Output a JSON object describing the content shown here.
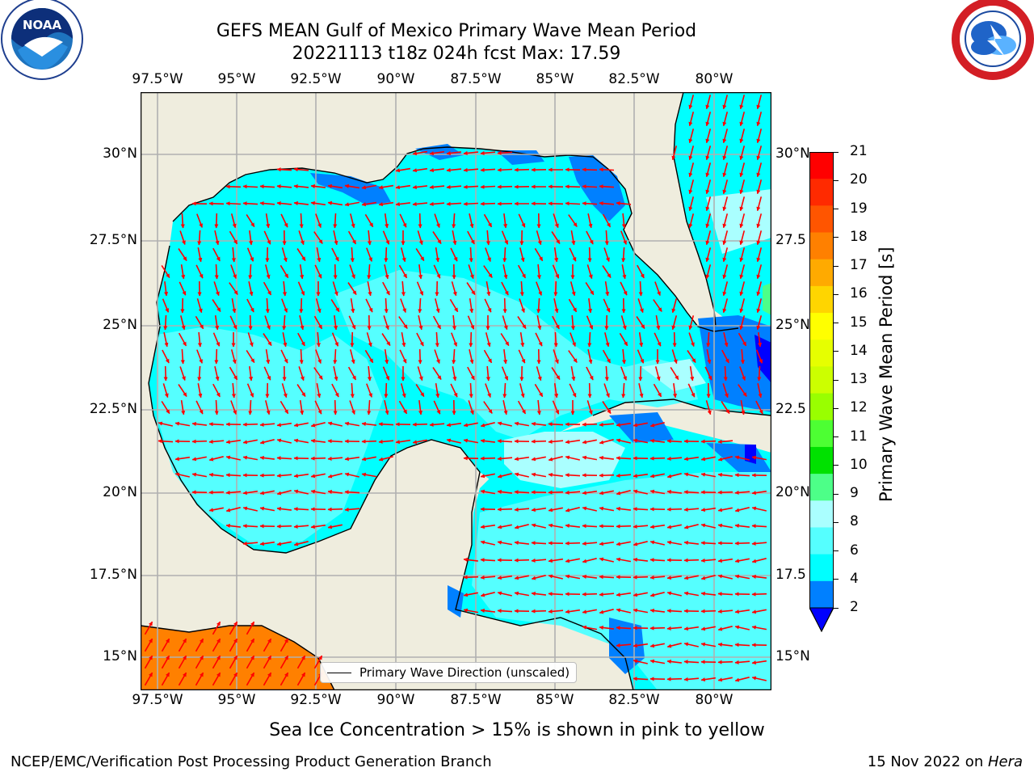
{
  "title": {
    "line1": "GEFS MEAN Gulf of Mexico Primary Wave Mean Period",
    "line2": "20221113 t18z 024h fcst   Max: 17.59"
  },
  "logos": {
    "left": {
      "icon": "noaa-logo",
      "text": "NOAA",
      "ring_text": "NATIONAL OCEANIC AND ATMOSPHERIC ADMINISTRATION · U.S. DEPARTMENT OF COMMERCE"
    },
    "right": {
      "icon": "nws-logo",
      "ring_text": "NATIONAL WEATHER SERVICE"
    }
  },
  "axes": {
    "lon_ticks": [
      "97.5°W",
      "95°W",
      "92.5°W",
      "90°W",
      "87.5°W",
      "85°W",
      "82.5°W",
      "80°W"
    ],
    "lat_ticks_left": [
      "30°N",
      "27.5°N",
      "25°N",
      "22.5°N",
      "20°N",
      "17.5°N",
      "15°N"
    ],
    "lat_ticks_right": [
      "30°N",
      "27.5",
      "25°N",
      "22.5",
      "20°N",
      "17.5",
      "15°N"
    ]
  },
  "colorbar": {
    "label": "Primary Wave Mean Period [s]",
    "ticks": [
      "21",
      "20",
      "19",
      "18",
      "17",
      "16",
      "15",
      "14",
      "13",
      "12",
      "11",
      "10",
      "9",
      "8",
      "6",
      "4",
      "2"
    ],
    "colors": [
      "#ff0000",
      "#ff2a00",
      "#ff5500",
      "#ff8000",
      "#ffaa00",
      "#ffd500",
      "#ffff00",
      "#e6ff00",
      "#ccff00",
      "#99ff00",
      "#4dff33",
      "#00e100",
      "#4dff88",
      "#aaffff",
      "#55ffff",
      "#00ffff",
      "#0080ff"
    ],
    "below_color": "#0000ff"
  },
  "legend": {
    "label": "Primary Wave Direction (unscaled)"
  },
  "caption": "Sea Ice Concentration > 15% is shown in pink to yellow",
  "footer": {
    "left": "NCEP/EMC/Verification Post Processing Product Generation Branch",
    "right_prefix": "15 Nov 2022 on ",
    "right_italic": "Hera"
  },
  "map_colors": {
    "land": "#efedde",
    "sea_main": "#00ffff",
    "sea_light": "#55ffff",
    "sea_pale": "#aaffff",
    "sea_blue": "#0080ff",
    "sea_dark": "#0000ff",
    "orange": "#ff8000",
    "arrow": "#ff0000",
    "grid": "#b0b0b0"
  }
}
